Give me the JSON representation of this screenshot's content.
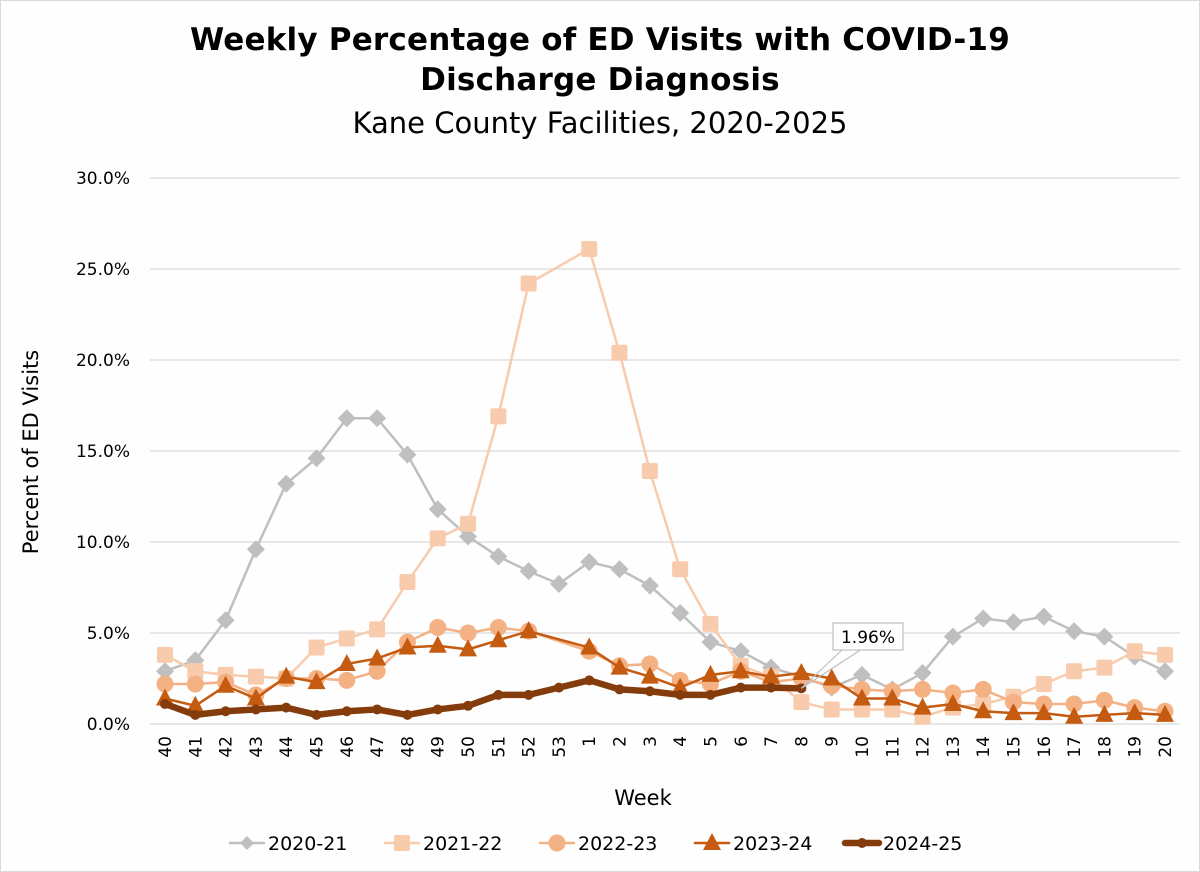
{
  "chart_data": {
    "type": "line",
    "title": "Weekly Percentage of ED Visits with COVID-19 Discharge Diagnosis",
    "subtitle": "Kane County Facilities, 2020-2025",
    "xlabel": "Week",
    "ylabel": "Percent of ED Visits",
    "ylim": [
      0,
      30
    ],
    "yticks": [
      0,
      5,
      10,
      15,
      20,
      25,
      30
    ],
    "ytick_labels": [
      "0.0%",
      "5.0%",
      "10.0%",
      "15.0%",
      "20.0%",
      "25.0%",
      "30.0%"
    ],
    "grid": "horizontal",
    "legend_position": "bottom",
    "categories": [
      "40",
      "41",
      "42",
      "43",
      "44",
      "45",
      "46",
      "47",
      "48",
      "49",
      "50",
      "51",
      "52",
      "53",
      "1",
      "2",
      "3",
      "4",
      "5",
      "6",
      "7",
      "8",
      "9",
      "10",
      "11",
      "12",
      "13",
      "14",
      "15",
      "16",
      "17",
      "18",
      "19",
      "20"
    ],
    "series": [
      {
        "name": "2020-21",
        "color": "#bfbfbf",
        "marker": "diamond",
        "values": [
          2.9,
          3.5,
          5.7,
          9.6,
          13.2,
          14.6,
          16.8,
          16.8,
          14.8,
          11.8,
          10.3,
          9.2,
          8.4,
          7.7,
          8.9,
          8.5,
          7.6,
          6.1,
          4.5,
          4.0,
          3.1,
          2.6,
          2.0,
          2.7,
          1.9,
          2.8,
          4.8,
          5.8,
          5.6,
          5.9,
          5.1,
          4.8,
          3.7,
          2.9
        ]
      },
      {
        "name": "2021-22",
        "color": "#f8cbad",
        "marker": "square",
        "values": [
          3.8,
          2.9,
          2.7,
          2.6,
          2.5,
          4.2,
          4.7,
          5.2,
          7.8,
          10.2,
          11.0,
          16.9,
          24.2,
          null,
          26.1,
          20.4,
          13.9,
          8.5,
          5.5,
          3.2,
          2.6,
          1.2,
          0.8,
          0.8,
          0.8,
          0.4,
          0.9,
          1.1,
          1.5,
          2.2,
          2.9,
          3.1,
          4.0,
          3.8
        ]
      },
      {
        "name": "2022-23",
        "color": "#f4b183",
        "marker": "circle",
        "values": [
          2.2,
          2.2,
          2.3,
          1.6,
          2.5,
          2.5,
          2.4,
          2.9,
          4.5,
          5.3,
          5.0,
          5.3,
          5.1,
          null,
          4.0,
          3.2,
          3.3,
          2.4,
          2.2,
          2.9,
          2.3,
          2.5,
          2.1,
          1.9,
          1.8,
          1.9,
          1.7,
          1.9,
          1.2,
          1.1,
          1.1,
          1.3,
          0.9,
          0.7
        ]
      },
      {
        "name": "2023-24",
        "color": "#c55a11",
        "marker": "triangle",
        "values": [
          1.4,
          1.0,
          2.1,
          1.4,
          2.6,
          2.3,
          3.3,
          3.6,
          4.2,
          4.3,
          4.1,
          4.6,
          5.1,
          null,
          4.2,
          3.1,
          2.6,
          2.0,
          2.7,
          2.9,
          2.6,
          2.8,
          2.5,
          1.4,
          1.4,
          0.9,
          1.1,
          0.7,
          0.6,
          0.6,
          0.4,
          0.5,
          0.6,
          0.5
        ]
      },
      {
        "name": "2024-25",
        "color": "#843c0c",
        "marker": "circle-small",
        "values": [
          1.1,
          0.5,
          0.7,
          0.8,
          0.9,
          0.5,
          0.7,
          0.8,
          0.5,
          0.8,
          1.0,
          1.6,
          1.6,
          2.0,
          2.4,
          1.9,
          1.8,
          1.6,
          1.6,
          2.0,
          2.0,
          1.96,
          null,
          null,
          null,
          null,
          null,
          null,
          null,
          null,
          null,
          null,
          null,
          null
        ]
      }
    ],
    "annotations": [
      {
        "series": "2024-25",
        "category": "8",
        "value": 1.96,
        "text": "1.96%"
      }
    ]
  }
}
